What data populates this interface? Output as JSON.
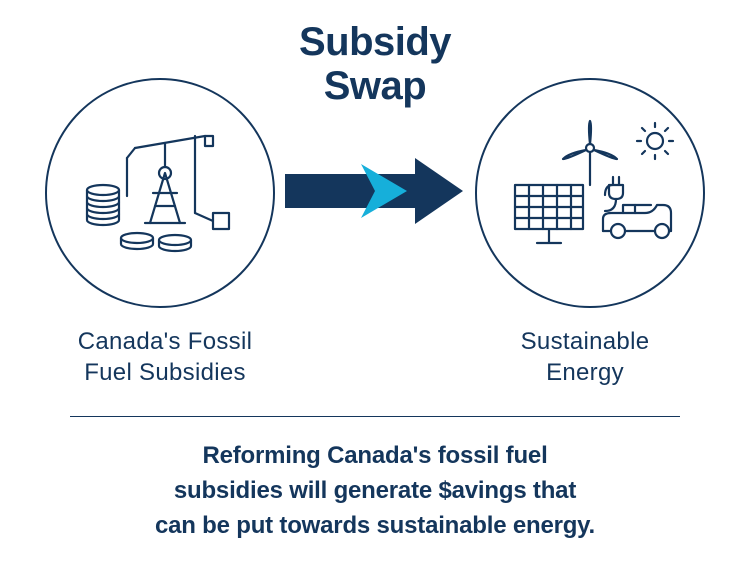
{
  "title": "Subsidy\nSwap",
  "title_fontsize": 40,
  "title_color": "#14365c",
  "left_circle": {
    "diameter": 230,
    "border_width": 2,
    "border_color": "#14365c",
    "icon_stroke": "#14365c",
    "icon_stroke_width": 2.2
  },
  "right_circle": {
    "diameter": 230,
    "border_width": 2,
    "border_color": "#14365c",
    "icon_stroke": "#14365c",
    "icon_stroke_width": 2.2
  },
  "arrow": {
    "width": 180,
    "height": 70,
    "main_color": "#14365c",
    "inset_color": "#16afda"
  },
  "left_label": "Canada's Fossil\nFuel Subsidies",
  "right_label": "Sustainable\nEnergy",
  "label_fontsize": 24,
  "label_color": "#14365c",
  "divider_color": "#14365c",
  "divider_width": 1,
  "footer_text": "Reforming Canada's fossil fuel\nsubsidies will generate $avings that\ncan be put towards sustainable energy.",
  "footer_fontsize": 24,
  "footer_color": "#14365c",
  "background_color": "#ffffff"
}
